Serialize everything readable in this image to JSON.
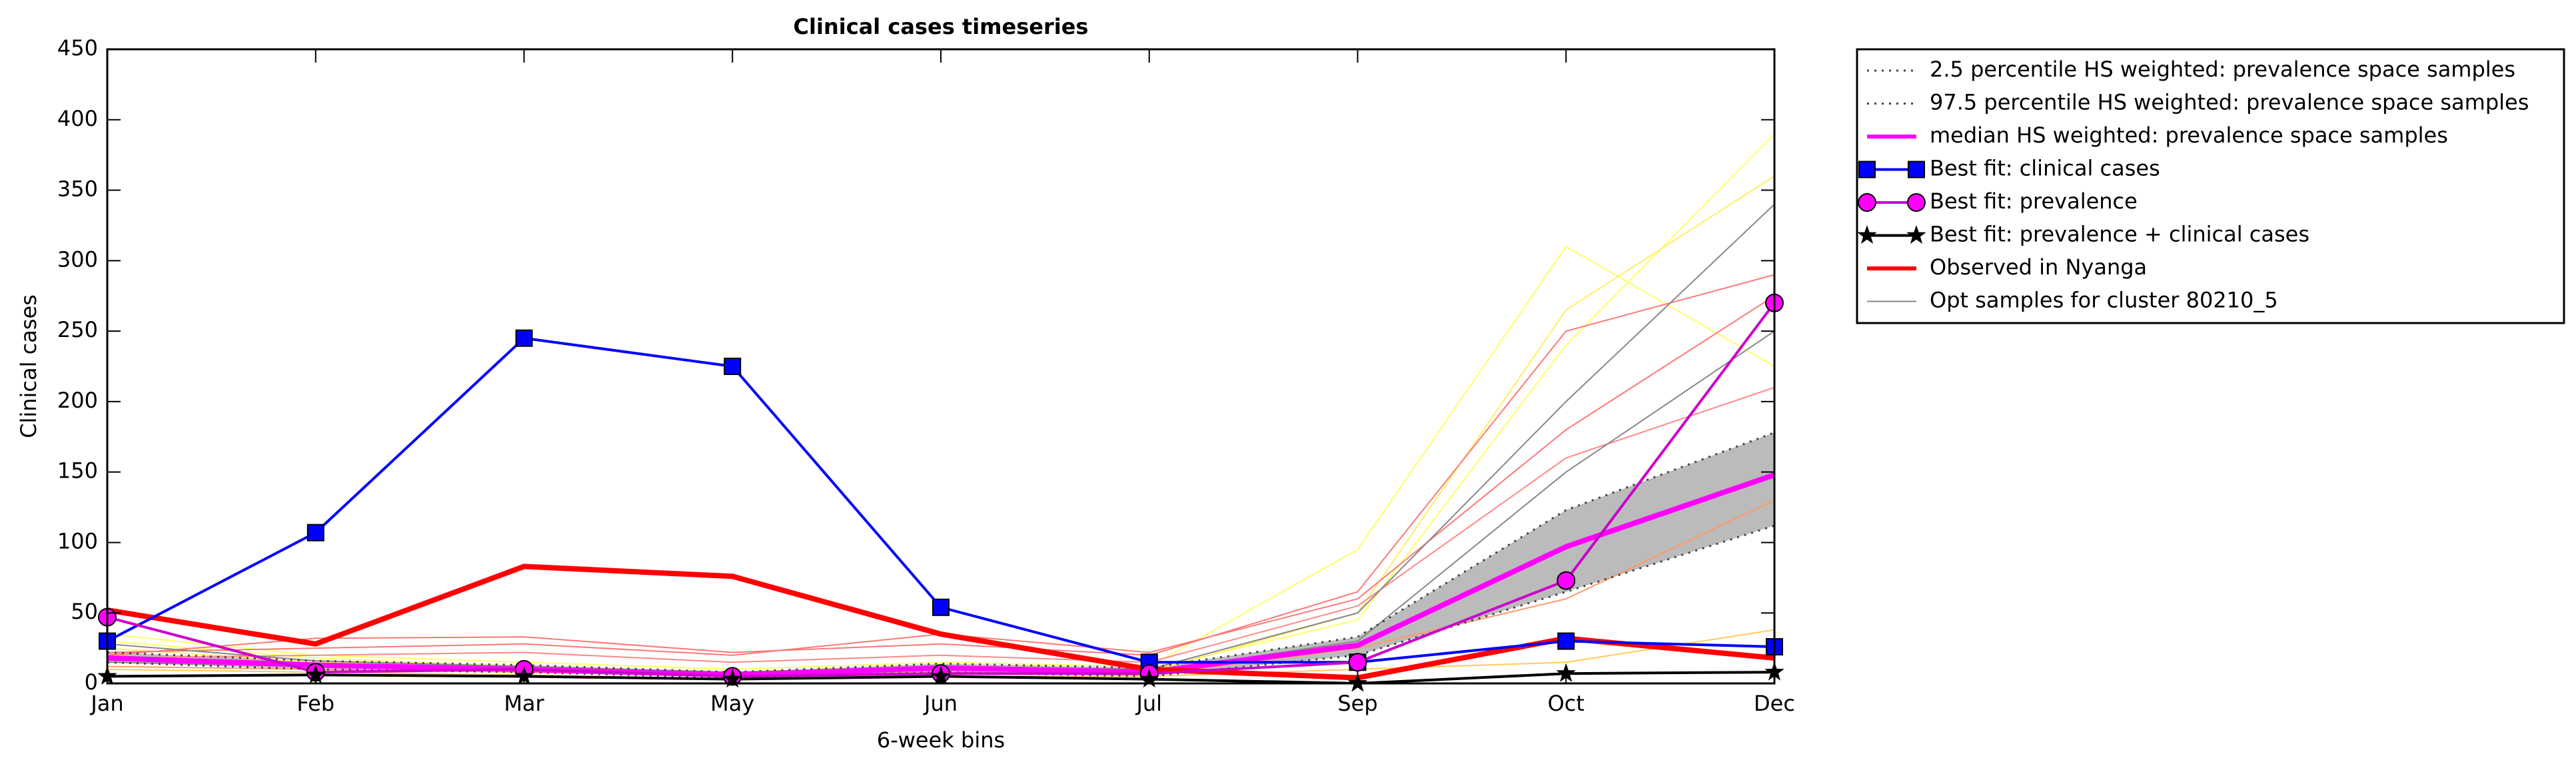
{
  "chart_data": {
    "type": "line",
    "title": "Clinical cases timeseries",
    "xlabel": "6-week bins",
    "ylabel": "Clinical cases",
    "categories": [
      "Jan",
      "Feb",
      "Mar",
      "May",
      "Jun",
      "Jul",
      "Sep",
      "Oct",
      "Dec"
    ],
    "ylim": [
      0,
      450
    ],
    "yticks": [
      0,
      50,
      100,
      150,
      200,
      250,
      300,
      350,
      400,
      450
    ],
    "band_color": "#bbbbbb",
    "series": [
      {
        "name": "2.5 percentile HS weighted: prevalence space samples",
        "color": "#444444",
        "linestyle": "dotted",
        "linewidth": 3,
        "values": [
          15,
          10,
          8,
          4,
          8,
          5,
          20,
          65,
          112
        ]
      },
      {
        "name": "97.5 percentile HS weighted: prevalence space samples",
        "color": "#444444",
        "linestyle": "dotted",
        "linewidth": 3,
        "values": [
          22,
          16,
          13,
          8,
          14,
          11,
          33,
          123,
          178
        ]
      },
      {
        "name": "median HS weighted: prevalence space samples",
        "color": "#ff00ff",
        "linestyle": "solid",
        "linewidth": 8,
        "values": [
          18,
          13,
          10,
          6,
          11,
          8,
          27,
          97,
          148
        ]
      },
      {
        "name": "Best fit: clinical cases",
        "color": "#0000ff",
        "linestyle": "solid",
        "linewidth": 4,
        "marker": "square",
        "values": [
          30,
          107,
          245,
          225,
          54,
          15,
          15,
          30,
          26
        ]
      },
      {
        "name": "Best fit: prevalence",
        "color": "#cc00cc",
        "marker_color": "#ff00ff",
        "linestyle": "solid",
        "linewidth": 4,
        "marker": "circle",
        "values": [
          47,
          8,
          10,
          5,
          7,
          7,
          15,
          73,
          270
        ]
      },
      {
        "name": "Best fit: prevalence + clinical cases",
        "color": "#000000",
        "linestyle": "solid",
        "linewidth": 4,
        "marker": "star",
        "values": [
          5,
          6,
          5,
          3,
          5,
          3,
          0,
          7,
          8
        ]
      },
      {
        "name": "Observed in Nyanga",
        "color": "#ff0000",
        "linestyle": "solid",
        "linewidth": 8,
        "values": [
          52,
          28,
          83,
          76,
          35,
          10,
          4,
          32,
          18
        ]
      },
      {
        "name": "Opt samples for cluster 80210_5",
        "color": "#888888",
        "linestyle": "solid",
        "linewidth": 2,
        "values": [
          28,
          16,
          12,
          8,
          12,
          10,
          50,
          200,
          340
        ]
      }
    ],
    "sample_lines": [
      {
        "color": "#ffff66",
        "values": [
          35,
          20,
          15,
          10,
          15,
          12,
          95,
          310,
          225
        ]
      },
      {
        "color": "#ffff66",
        "values": [
          30,
          18,
          12,
          8,
          12,
          10,
          45,
          240,
          390
        ]
      },
      {
        "color": "#ffee66",
        "values": [
          25,
          15,
          10,
          6,
          10,
          8,
          50,
          265,
          360
        ]
      },
      {
        "color": "#ff7777",
        "values": [
          20,
          32,
          33,
          22,
          28,
          20,
          65,
          250,
          290
        ]
      },
      {
        "color": "#ff7777",
        "values": [
          22,
          25,
          28,
          20,
          35,
          22,
          60,
          180,
          275
        ]
      },
      {
        "color": "#ff8888",
        "values": [
          18,
          20,
          22,
          15,
          20,
          15,
          55,
          160,
          210
        ]
      },
      {
        "color": "#888888",
        "values": [
          15,
          12,
          10,
          6,
          10,
          8,
          30,
          150,
          250
        ]
      },
      {
        "color": "#ffcc55",
        "values": [
          10,
          8,
          6,
          3,
          5,
          5,
          10,
          15,
          38
        ]
      },
      {
        "color": "#ff9966",
        "values": [
          12,
          10,
          8,
          5,
          8,
          6,
          25,
          60,
          130
        ]
      }
    ]
  }
}
